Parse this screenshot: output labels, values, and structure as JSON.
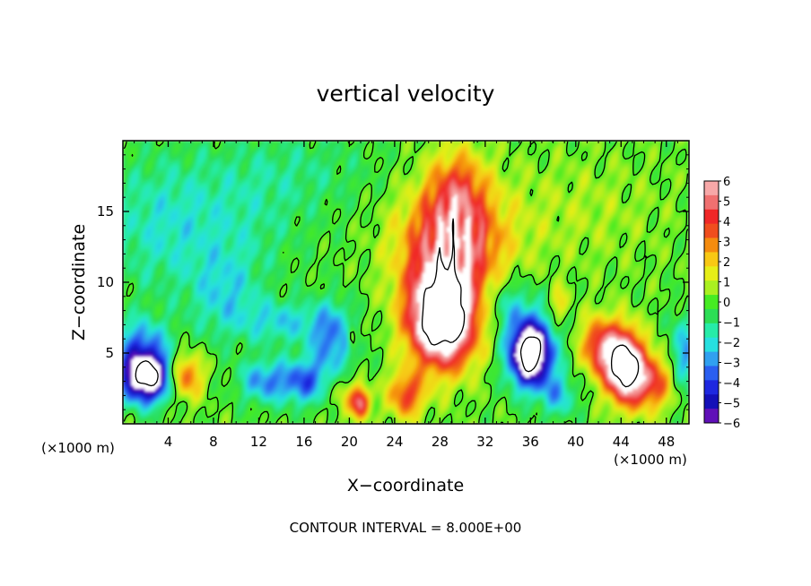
{
  "chart_data": {
    "type": "heatmap",
    "title": "vertical velocity",
    "xlabel": "X−coordinate",
    "ylabel": "Z−coordinate",
    "x_unit": "(×1000 m)",
    "x_unit_right": "(×1000 m)",
    "footer": "CONTOUR INTERVAL = 8.000E+00",
    "xlim": [
      0,
      50
    ],
    "ylim": [
      0,
      20
    ],
    "x_ticks": [
      4,
      8,
      12,
      16,
      20,
      24,
      28,
      32,
      36,
      40,
      44,
      48
    ],
    "x_tick_labels": [
      "4",
      "8",
      "12",
      "16",
      "20",
      "24",
      "28",
      "32",
      "36",
      "40",
      "44",
      "48"
    ],
    "y_ticks": [
      5,
      10,
      15
    ],
    "y_tick_labels": [
      "5",
      "10",
      "15"
    ],
    "colorbar": {
      "min": -6,
      "max": 6,
      "tick_labels": [
        "6",
        "5",
        "4",
        "3",
        "2",
        "1",
        "0",
        "−1",
        "−2",
        "−3",
        "−4",
        "−5",
        "−6"
      ],
      "colors": [
        "#f7a8a8",
        "#f07070",
        "#f02828",
        "#f04e1e",
        "#f58c0f",
        "#f8c814",
        "#e6ee18",
        "#aaf020",
        "#46ec23",
        "#2cde55",
        "#26eca8",
        "#26e0e0",
        "#30a0f0",
        "#2a5ff0",
        "#1e28e0",
        "#1410b8",
        "#6010b8"
      ]
    },
    "features": [
      {
        "kind": "updraft",
        "x": 28,
        "z": 8.0,
        "peak": 8
      },
      {
        "kind": "updraft",
        "x": 30,
        "z": 14.0,
        "peak": 5
      },
      {
        "kind": "updraft",
        "x": 44,
        "z": 4.5,
        "peak": 8
      },
      {
        "kind": "updraft",
        "x": 5.5,
        "z": 3.5,
        "peak": 4
      },
      {
        "kind": "updraft",
        "x": 21,
        "z": 1.5,
        "peak": 5
      },
      {
        "kind": "downdraft",
        "x": 2,
        "z": 3.5,
        "peak": -8
      },
      {
        "kind": "downdraft",
        "x": 36,
        "z": 5.0,
        "peak": -8
      },
      {
        "kind": "downdraft",
        "x": 18,
        "z": 6.0,
        "peak": -4
      },
      {
        "kind": "downdraft",
        "x": 12,
        "z": 3.0,
        "peak": -3
      }
    ]
  }
}
